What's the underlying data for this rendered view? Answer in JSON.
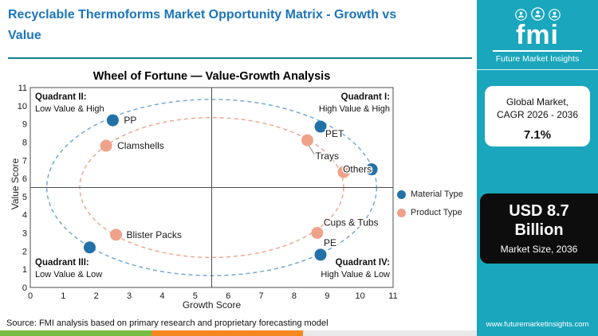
{
  "header": {
    "title_line1": "Recyclable Thermoforms Market  Opportunity Matrix - Growth vs",
    "title_line2": "Value"
  },
  "sidebar": {
    "logo": {
      "brand": "fmi",
      "subtitle": "Future Market Insights",
      "icons": [
        "person-icon",
        "person-icon",
        "person-icon"
      ]
    },
    "cagr_card": {
      "line1": "Global Market,",
      "line2": "CAGR 2026 - 2036",
      "value": "7.1%"
    },
    "size_card": {
      "value": "USD 8.7 Billion",
      "label": "Market Size, 2036"
    },
    "website": "www.futuremarketinsights.com"
  },
  "footer": {
    "source": "Source: FMI analysis based on primary research and proprietary forecasting model"
  },
  "colors": {
    "title_blue": "#1B75BC",
    "accent_teal": "#1AA6BC",
    "rule_teal": "#0D7F90",
    "material_blue": "#2272A8",
    "product_orange": "#EFA28A",
    "ellipse_blue": "#74A9D4",
    "ellipse_orange": "#F0A78F",
    "card_black": "#0D0D0D",
    "stripe_green": "#76BC43",
    "stripe_orange": "#F6871F",
    "stripe_gray": "#E9E9E9"
  },
  "chart_data": {
    "type": "scatter",
    "title": "Wheel of Fortune — Value-Growth Analysis",
    "xlabel": "Growth Score",
    "ylabel": "Value Score",
    "xlim": [
      0,
      11
    ],
    "ylim": [
      0,
      11
    ],
    "grid": false,
    "legend_position": "right",
    "quadrant_divider": {
      "x": 5.5,
      "y": 5.5
    },
    "wheel_center": {
      "x": 5.5,
      "y": 5.5
    },
    "ellipses": [
      {
        "rx": 5.0,
        "ry": 4.85,
        "color": "#74A9D4"
      },
      {
        "rx": 4.0,
        "ry": 3.85,
        "color": "#F0A78F"
      }
    ],
    "quadrants": [
      {
        "name": "Quadrant II:",
        "desc": "Low Value & High",
        "position": "top-left"
      },
      {
        "name": "Quadrant I:",
        "desc": "High Value & High",
        "position": "top-right"
      },
      {
        "name": "Quadrant III:",
        "desc": "Low Value & Low",
        "position": "bottom-left"
      },
      {
        "name": "Quadrant IV:",
        "desc": "High Value & Low",
        "position": "bottom-right"
      }
    ],
    "legend": [
      {
        "name": "Material Type",
        "color": "#2272A8"
      },
      {
        "name": "Product Type",
        "color": "#EFA28A"
      }
    ],
    "series": [
      {
        "name": "Material Type",
        "color": "#2272A8",
        "points": [
          {
            "label": "PP",
            "x": 2.5,
            "y": 9.2,
            "label_dx": 14,
            "label_dy": 4
          },
          {
            "label": "",
            "x": 1.8,
            "y": 2.2
          },
          {
            "label": "PET",
            "x": 8.8,
            "y": 8.85,
            "label_dx": 6,
            "label_dy": 13
          },
          {
            "label": "Others",
            "x": 10.35,
            "y": 6.5,
            "label_dx": -18,
            "label_dy": 4,
            "anchor": "middle"
          },
          {
            "label": "PE",
            "x": 8.8,
            "y": 1.8,
            "label_dx": 4,
            "label_dy": -11
          }
        ]
      },
      {
        "name": "Product Type",
        "color": "#EFA28A",
        "points": [
          {
            "label": "Clamshells",
            "x": 2.3,
            "y": 7.8,
            "label_dx": 14,
            "label_dy": 4
          },
          {
            "label": "Blister Packs",
            "x": 2.6,
            "y": 2.9,
            "label_dx": 13,
            "label_dy": 4
          },
          {
            "label": "Trays",
            "x": 8.4,
            "y": 8.1,
            "label_dx": 10,
            "label_dy": 24,
            "connector": true
          },
          {
            "label": "",
            "x": 9.5,
            "y": 6.35
          },
          {
            "label": "Cups & Tubs",
            "x": 8.7,
            "y": 3.0,
            "label_dx": 8,
            "label_dy": -9
          }
        ]
      }
    ]
  }
}
